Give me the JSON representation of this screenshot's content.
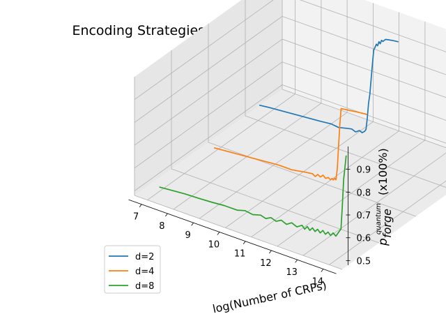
{
  "chart_data": {
    "type": "line",
    "projection": "3d",
    "title": "Encoding Strategies in Different Dimensions(d)",
    "xlabel": "log(Number of CRPs)",
    "zlabel_prefix": "p",
    "zlabel_sup": "quantum",
    "zlabel_sub": "forge",
    "zlabel_suffix": "(x100%)",
    "x_ticks": [
      "7",
      "8",
      "9",
      "10",
      "11",
      "12",
      "13",
      "14"
    ],
    "z_ticks": [
      "0.5",
      "0.6",
      "0.7",
      "0.8",
      "0.9"
    ],
    "xlim": [
      6.5,
      14.5
    ],
    "zlim": [
      0.48,
      1.0
    ],
    "grid": true,
    "legend_position": "lower-left",
    "colors": {
      "d=2": "#1f77b4",
      "d=4": "#ff7f0e",
      "d=8": "#2ca02c"
    },
    "series": [
      {
        "name": "d=2",
        "x": [
          6.64,
          7.0,
          7.5,
          8.0,
          8.5,
          9.0,
          9.4,
          9.7,
          10.0,
          10.2,
          10.35,
          10.5,
          10.6,
          10.7,
          10.75,
          10.8,
          10.85,
          10.9,
          10.95,
          11.0,
          11.05,
          11.1,
          11.15,
          11.2,
          11.25,
          11.3,
          11.35,
          11.4,
          11.5,
          11.6,
          11.8,
          12.0
        ],
        "y": [
          0.5,
          0.505,
          0.51,
          0.515,
          0.52,
          0.525,
          0.53,
          0.526,
          0.535,
          0.54,
          0.533,
          0.545,
          0.54,
          0.55,
          0.56,
          0.61,
          0.68,
          0.72,
          0.79,
          0.86,
          0.92,
          0.935,
          0.95,
          0.945,
          0.965,
          0.958,
          0.975,
          0.972,
          0.985,
          0.988,
          0.992,
          0.995
        ]
      },
      {
        "name": "d=4",
        "x": [
          7.0,
          7.5,
          8.0,
          8.5,
          9.0,
          9.5,
          10.0,
          10.5,
          10.8,
          10.9,
          11.0,
          11.1,
          11.2,
          11.3,
          11.4,
          11.5,
          11.55,
          11.6,
          11.65,
          11.7,
          11.75,
          11.8,
          11.85,
          11.9,
          12.2,
          12.5,
          12.9
        ],
        "y": [
          0.5,
          0.505,
          0.51,
          0.515,
          0.52,
          0.525,
          0.525,
          0.535,
          0.54,
          0.532,
          0.545,
          0.538,
          0.55,
          0.54,
          0.548,
          0.542,
          0.55,
          0.545,
          0.555,
          0.55,
          0.6,
          0.7,
          0.8,
          0.87,
          0.875,
          0.88,
          0.885
        ]
      },
      {
        "name": "d=8",
        "x": [
          7.0,
          7.5,
          8.0,
          8.5,
          9.0,
          9.5,
          10.0,
          10.3,
          10.6,
          10.9,
          11.1,
          11.3,
          11.5,
          11.7,
          11.9,
          12.1,
          12.3,
          12.5,
          12.6,
          12.7,
          12.8,
          12.9,
          13.0,
          13.1,
          13.2,
          13.3,
          13.4,
          13.5,
          13.6,
          13.7,
          13.8,
          13.9,
          14.0,
          14.05,
          14.1,
          14.2
        ],
        "y": [
          0.5,
          0.505,
          0.51,
          0.512,
          0.515,
          0.52,
          0.52,
          0.53,
          0.525,
          0.535,
          0.528,
          0.54,
          0.532,
          0.545,
          0.535,
          0.55,
          0.54,
          0.555,
          0.542,
          0.558,
          0.545,
          0.56,
          0.548,
          0.562,
          0.55,
          0.565,
          0.552,
          0.566,
          0.555,
          0.57,
          0.56,
          0.58,
          0.6,
          0.7,
          0.82,
          0.93
        ]
      }
    ]
  }
}
